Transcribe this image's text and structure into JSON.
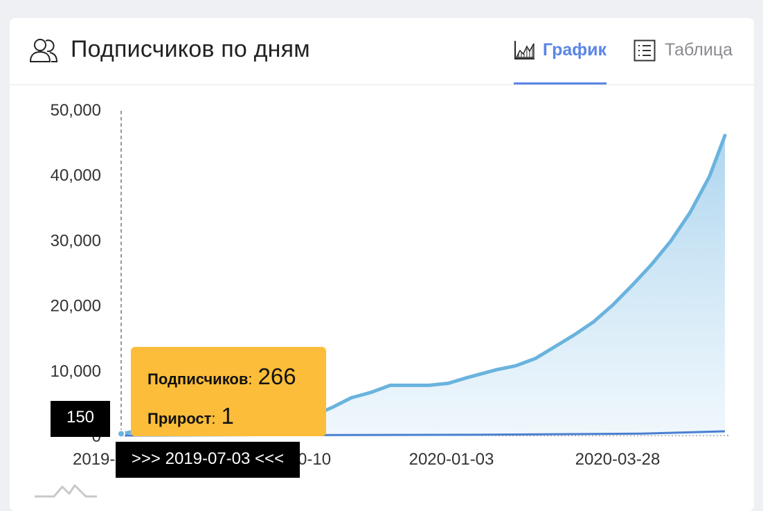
{
  "header": {
    "title": "Подписчиков по дням",
    "tabs": [
      {
        "label": "График",
        "active": true,
        "icon": "area-chart-icon"
      },
      {
        "label": "Таблица",
        "active": false,
        "icon": "list-icon"
      }
    ]
  },
  "colors": {
    "accent": "#5b86e5",
    "line": "#6ab3de",
    "area": "#b9dcf0",
    "growth_line": "#4a7fd1",
    "tooltip_bg": "#fcbd3a",
    "crosshair_label_bg": "#000000"
  },
  "tooltip": {
    "subscribers_label": "Подписчиков",
    "subscribers_value": "266",
    "growth_label": "Прирост",
    "growth_value": "1"
  },
  "crosshair": {
    "y_label": "150",
    "x_label": ">>> 2019-07-03 <<<"
  },
  "chart_data": {
    "type": "area",
    "title": "Подписчиков по дням",
    "xlabel": "",
    "ylabel": "",
    "ylim": [
      0,
      50000
    ],
    "y_ticks": [
      "0",
      "10,000",
      "20,000",
      "30,000",
      "40,000",
      "50,000"
    ],
    "x_ticks": [
      "2019-",
      "0-10",
      "2020-01-03",
      "2020-03-28"
    ],
    "grid": false,
    "legend": "none",
    "series": [
      {
        "name": "Подписчиков",
        "x": [
          "2019-07-03",
          "2019-07-13",
          "2019-07-23",
          "2019-08-02",
          "2019-08-12",
          "2019-08-22",
          "2019-09-01",
          "2019-09-11",
          "2019-09-21",
          "2019-10-01",
          "2019-10-10",
          "2019-10-20",
          "2019-10-30",
          "2019-11-09",
          "2019-11-19",
          "2019-11-29",
          "2019-12-09",
          "2019-12-19",
          "2019-12-29",
          "2020-01-03",
          "2020-01-13",
          "2020-01-23",
          "2020-02-02",
          "2020-02-12",
          "2020-02-22",
          "2020-03-03",
          "2020-03-13",
          "2020-03-23",
          "2020-03-28",
          "2020-04-02",
          "2020-04-12",
          "2020-04-22",
          "2020-05-02",
          "2020-05-10"
        ],
        "values": [
          266,
          800,
          1300,
          1600,
          1600,
          1700,
          1800,
          1900,
          2100,
          2700,
          3000,
          4300,
          5800,
          6600,
          7700,
          7700,
          7700,
          8000,
          8900,
          9300,
          10100,
          10700,
          11800,
          13600,
          15400,
          17400,
          20000,
          23000,
          24600,
          26200,
          29800,
          34200,
          39700,
          46000
        ]
      },
      {
        "name": "Прирост",
        "x": [
          "2019-07-03",
          "2019-10-10",
          "2020-01-03",
          "2020-03-28",
          "2020-05-10"
        ],
        "values": [
          1,
          60,
          120,
          300,
          650
        ]
      }
    ]
  }
}
